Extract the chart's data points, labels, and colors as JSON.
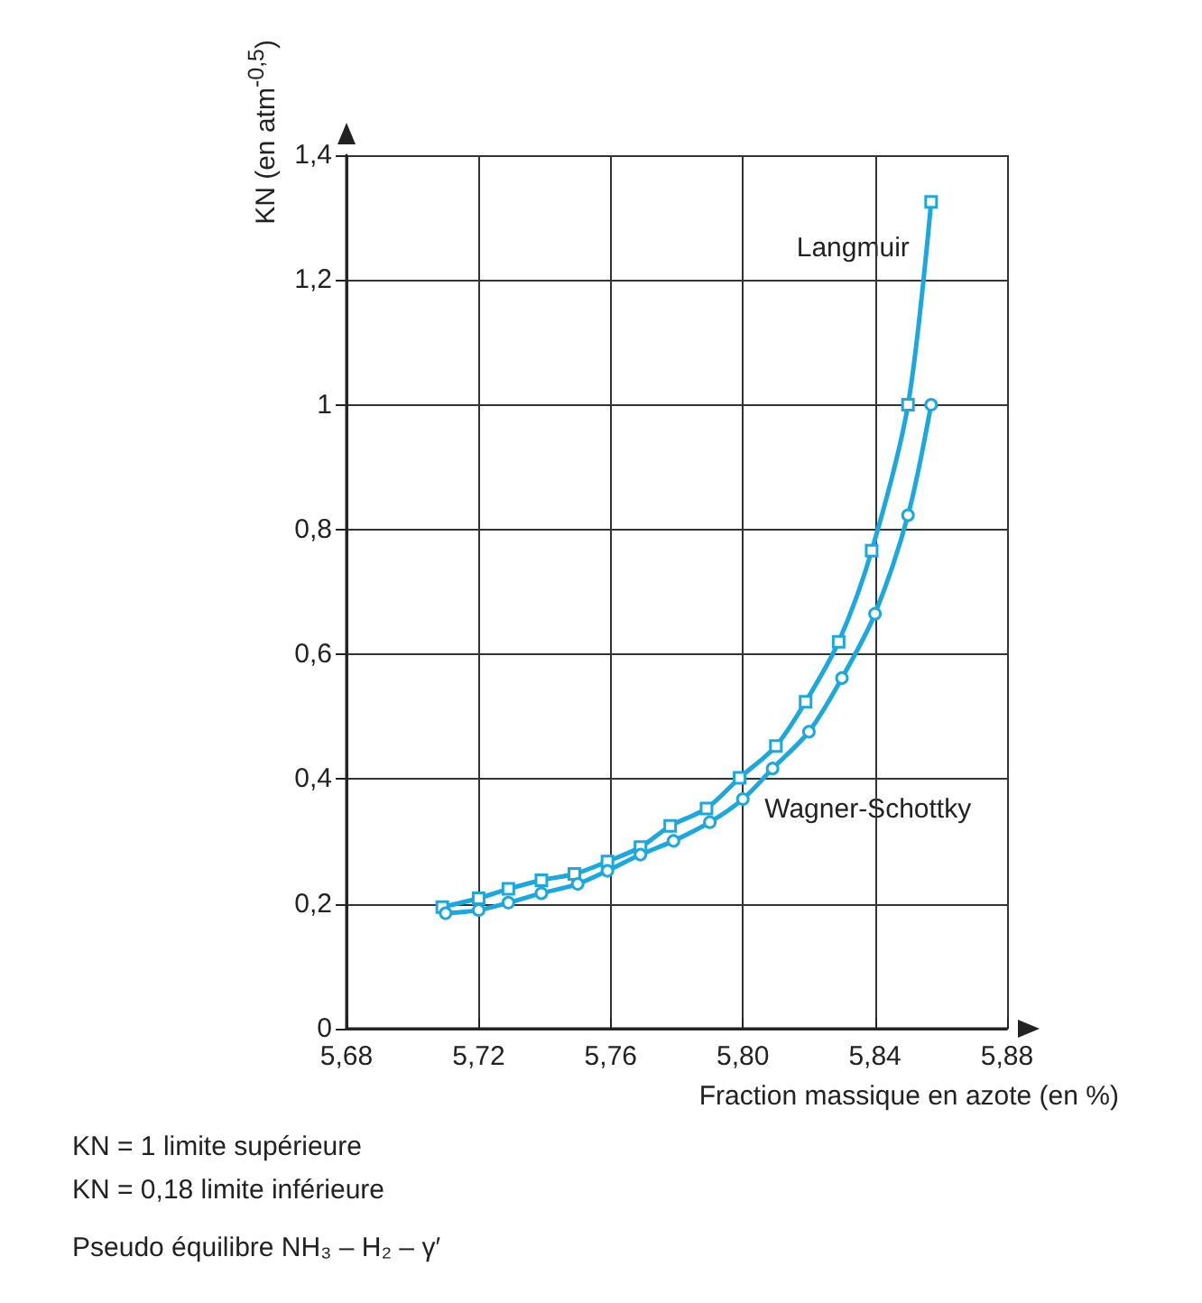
{
  "chart_data": {
    "type": "line",
    "xlabel": "Fraction massique en azote (en %)",
    "ylabel": "KN (en atm$^{-0,5}$)",
    "xlim": [
      5.68,
      5.88
    ],
    "xticks": [
      {
        "value": 5.68,
        "label": "5,68"
      },
      {
        "value": 5.72,
        "label": "5,72"
      },
      {
        "value": 5.76,
        "label": "5,76"
      },
      {
        "value": 5.8,
        "label": "5,80"
      },
      {
        "value": 5.84,
        "label": "5,84"
      },
      {
        "value": 5.88,
        "label": "5,88"
      }
    ],
    "ylim": [
      0,
      1.4
    ],
    "yticks": [
      0,
      {
        "value": 0.2,
        "label": "0,2"
      },
      {
        "value": 0.4,
        "label": "0,4"
      },
      {
        "value": 0.6,
        "label": "0,6"
      },
      {
        "value": 0.8,
        "label": "0,8"
      },
      1,
      {
        "value": 1.2,
        "label": "1,2"
      },
      {
        "value": 1.4,
        "label": "1,4"
      }
    ],
    "grid": true,
    "legend": false,
    "series": [
      {
        "name": "Langmuir",
        "color": "#1aa8e0",
        "marker": "square",
        "x": [
          5.709,
          5.72,
          5.729,
          5.739,
          5.749,
          5.759,
          5.769,
          5.778,
          5.789,
          5.799,
          5.81,
          5.819,
          5.829,
          5.839,
          5.85,
          5.857
        ],
        "values": [
          0.195,
          0.209,
          0.224,
          0.238,
          0.248,
          0.268,
          0.291,
          0.325,
          0.353,
          0.402,
          0.453,
          0.524,
          0.62,
          0.766,
          1.0,
          1.325
        ]
      },
      {
        "name": "Wagner-Schottky",
        "color": "#1aa8e0",
        "marker": "circle",
        "x": [
          5.71,
          5.72,
          5.729,
          5.739,
          5.75,
          5.759,
          5.769,
          5.779,
          5.79,
          5.8,
          5.809,
          5.82,
          5.83,
          5.84,
          5.85,
          5.857
        ],
        "values": [
          0.185,
          0.19,
          0.202,
          0.217,
          0.232,
          0.253,
          0.279,
          0.301,
          0.331,
          0.368,
          0.417,
          0.476,
          0.562,
          0.665,
          0.823,
          1.0
        ]
      }
    ],
    "annotations": [
      "KN = 1 limite supérieure",
      "KN = 0,18 limite inférieure",
      "Pseudo équilibre NH₃ – H₂ – γ′"
    ]
  }
}
